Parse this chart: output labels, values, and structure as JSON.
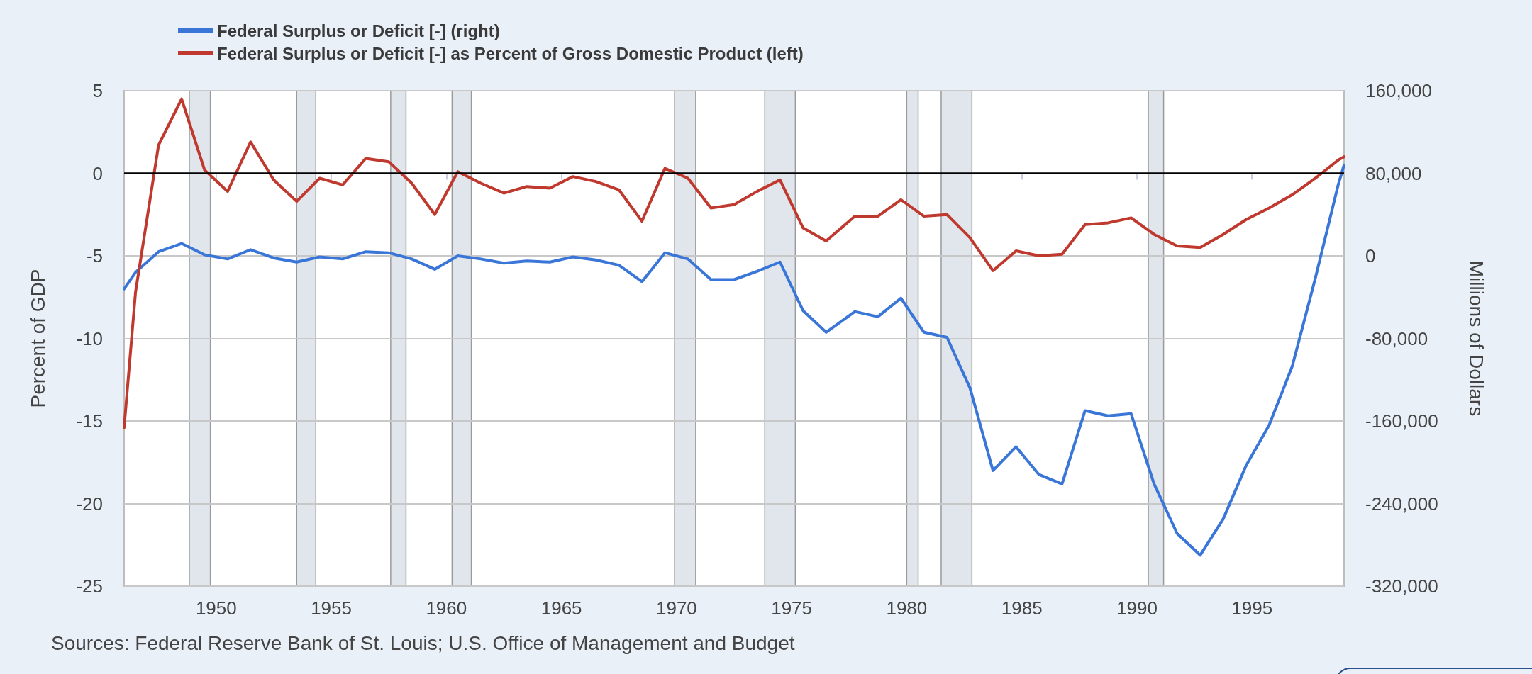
{
  "chart_data": {
    "type": "line",
    "ylabel": "Percent of GDP",
    "y2label": "Millions of Dollars",
    "annotations": [
      "Sources: Federal Reserve Bank of St. Louis; U.S. Office of Management and Budget"
    ],
    "x": [
      "1946-01-01",
      "1946-07-01",
      "1947-07-01",
      "1948-07-01",
      "1949-07-01",
      "1950-07-01",
      "1951-07-01",
      "1952-07-01",
      "1953-07-01",
      "1954-07-01",
      "1955-07-01",
      "1956-07-01",
      "1957-07-01",
      "1958-07-01",
      "1959-07-01",
      "1960-07-01",
      "1961-07-01",
      "1962-07-01",
      "1963-07-01",
      "1964-07-01",
      "1965-07-01",
      "1966-07-01",
      "1967-07-01",
      "1968-07-01",
      "1969-07-01",
      "1970-07-01",
      "1971-07-01",
      "1972-07-01",
      "1973-07-01",
      "1974-07-01",
      "1975-07-01",
      "1976-07-01",
      "1977-10-01",
      "1978-10-01",
      "1979-10-01",
      "1980-10-01",
      "1981-10-01",
      "1982-10-01",
      "1983-10-01",
      "1984-10-01",
      "1985-10-01",
      "1986-10-01",
      "1987-10-01",
      "1988-10-01",
      "1989-10-01",
      "1990-10-01",
      "1991-10-01",
      "1992-10-01",
      "1993-10-01",
      "1994-10-01",
      "1995-10-01",
      "1996-10-01",
      "1997-10-01",
      "1998-10-01",
      "1999-01-01"
    ],
    "series": [
      {
        "name": "Federal Surplus or Deficit [-] (right)",
        "color": "#3a76d8",
        "axis": "y2",
        "values": [
          -32000,
          -16000,
          4000,
          12000,
          1000,
          -3000,
          6000,
          -2000,
          -6000,
          -1000,
          -3000,
          4000,
          3000,
          -3000,
          -13000,
          0,
          -3000,
          -7000,
          -5000,
          -6000,
          -1000,
          -4000,
          -9000,
          -25000,
          3000,
          -3000,
          -23000,
          -23000,
          -15000,
          -6000,
          -53000,
          -74000,
          -54000,
          -59000,
          -41000,
          -74000,
          -79000,
          -128000,
          -208000,
          -185000,
          -212000,
          -221000,
          -150000,
          -155000,
          -153000,
          -221000,
          -269000,
          -290000,
          -255000,
          -203000,
          -164000,
          -107000,
          -22000,
          69000,
          88000
        ]
      },
      {
        "name": "Federal Surplus or Deficit [-] as Percent of Gross Domestic Product (left)",
        "color": "#c0392f",
        "values": [
          -15.4,
          -7.2,
          1.7,
          4.5,
          0.2,
          -1.1,
          1.9,
          -0.4,
          -1.7,
          -0.3,
          -0.7,
          0.9,
          0.7,
          -0.6,
          -2.5,
          0.1,
          -0.6,
          -1.2,
          -0.8,
          -0.9,
          -0.2,
          -0.5,
          -1.0,
          -2.9,
          0.3,
          -0.3,
          -2.1,
          -1.9,
          -1.1,
          -0.4,
          -3.3,
          -4.1,
          -2.6,
          -2.6,
          -1.6,
          -2.6,
          -2.5,
          -3.9,
          -5.9,
          -4.7,
          -5.0,
          -4.9,
          -3.1,
          -3.0,
          -2.7,
          -3.7,
          -4.4,
          -4.5,
          -3.7,
          -2.8,
          -2.1,
          -1.3,
          -0.3,
          0.8,
          1.0
        ]
      }
    ],
    "xlim": [
      "1946-01-01",
      "1999-01-01"
    ],
    "xticks": [
      "1950",
      "1955",
      "1960",
      "1965",
      "1970",
      "1975",
      "1980",
      "1985",
      "1990",
      "1995"
    ],
    "ylim": [
      -25,
      5
    ],
    "yticks": [
      -25,
      -20,
      -15,
      -10,
      -5,
      0,
      5
    ],
    "y2lim": [
      -320000,
      160000
    ],
    "y2ticks": [
      {
        "value": -320000,
        "label": "-320,000"
      },
      {
        "value": -240000,
        "label": "-240,000"
      },
      {
        "value": -160000,
        "label": "-160,000"
      },
      {
        "value": -80000,
        "label": "-80,000"
      },
      {
        "value": 0,
        "label": "0"
      },
      {
        "value": 80000,
        "label": "80,000"
      },
      {
        "value": 160000,
        "label": "160,000"
      }
    ],
    "grid": "y",
    "legend": "top left",
    "marker": "none",
    "line_style": "solid",
    "ref_lines": [
      {
        "axis": "y",
        "value": 0,
        "color": "#000000"
      }
    ],
    "bands": [
      {
        "axis": "x",
        "from": "1948-11",
        "to": "1949-10",
        "color": "#e1e5ec"
      },
      {
        "axis": "x",
        "from": "1953-07",
        "to": "1954-05",
        "color": "#e1e5ec"
      },
      {
        "axis": "x",
        "from": "1957-08",
        "to": "1958-04",
        "color": "#e1e5ec"
      },
      {
        "axis": "x",
        "from": "1960-04",
        "to": "1961-02",
        "color": "#e1e5ec"
      },
      {
        "axis": "x",
        "from": "1969-12",
        "to": "1970-11",
        "color": "#e1e5ec"
      },
      {
        "axis": "x",
        "from": "1973-11",
        "to": "1975-03",
        "color": "#e1e5ec"
      },
      {
        "axis": "x",
        "from": "1980-01",
        "to": "1980-07",
        "color": "#e1e5ec"
      },
      {
        "axis": "x",
        "from": "1981-07",
        "to": "1982-11",
        "color": "#e1e5ec"
      },
      {
        "axis": "x",
        "from": "1990-07",
        "to": "1991-03",
        "color": "#e1e5ec"
      }
    ]
  }
}
